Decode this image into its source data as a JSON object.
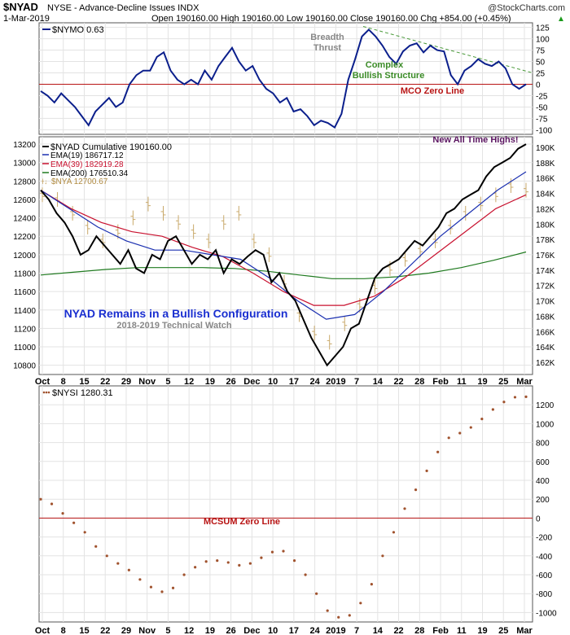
{
  "header": {
    "symbol": "$NYAD",
    "description": "NYSE - Advance-Decline Issues  INDX",
    "watermark": "@StockCharts.com",
    "date": "1-Mar-2019",
    "quote": "Open 190160.00  High 190160.00  Low 190160.00  Close 190160.00  Chg +854.00 (+0.45%)",
    "quote_arrow": "▲"
  },
  "annotations": {
    "breadth_line1": "Breadth",
    "breadth_line2": "Thrust",
    "complex_line1": "Complex",
    "complex_line2": "Bullish Structure",
    "mco_zero": "MCO Zero Line",
    "new_highs": "New All Time Highs!",
    "config": "NYAD Remains in a Bullish Configuration",
    "watch": "2018-2019 Technical Watch",
    "mcsum_zero": "MCSUM Zero Line"
  },
  "colors": {
    "mco": "#0b1f8c",
    "zero": "#b81414",
    "cum": "#000000",
    "ema19": "#1a2fb0",
    "ema39": "#c8102e",
    "ema200": "#1f7a1f",
    "nya": "#c9a96a",
    "mcsum": "#a0522d",
    "trend": "#4a9a3a",
    "grid": "#e3e3e3",
    "breadth": "#888888",
    "complex": "#3c8c28",
    "new_highs": "#5a1460",
    "config": "#1a2fd0"
  },
  "x_ticks": [
    "Oct",
    "8",
    "15",
    "22",
    "29",
    "Nov",
    "5",
    "12",
    "19",
    "26",
    "Dec",
    "10",
    "17",
    "24",
    "2019",
    "7",
    "14",
    "22",
    "28",
    "Feb",
    "11",
    "19",
    "25",
    "Mar"
  ],
  "chart_data": [
    {
      "type": "line",
      "name": "mco",
      "legend": "$NYMO 0.63",
      "ylim": [
        -110,
        135
      ],
      "y_ticks": [
        "125",
        "100",
        "75",
        "50",
        "25",
        "0",
        "-25",
        "-50",
        "-75",
        "-100"
      ],
      "values": [
        -15,
        -25,
        -40,
        -20,
        -35,
        -50,
        -70,
        -90,
        -60,
        -45,
        -30,
        -50,
        -40,
        0,
        20,
        30,
        30,
        60,
        70,
        30,
        10,
        0,
        10,
        0,
        30,
        10,
        40,
        60,
        80,
        50,
        30,
        40,
        10,
        -10,
        -20,
        -40,
        -30,
        -60,
        -55,
        -70,
        -90,
        -80,
        -85,
        -95,
        -65,
        10,
        55,
        105,
        120,
        105,
        85,
        60,
        45,
        72,
        85,
        90,
        70,
        85,
        75,
        72,
        20,
        0,
        30,
        40,
        55,
        45,
        40,
        50,
        35,
        0,
        -10,
        0
      ],
      "trendline_ylim": [
        127,
        25
      ],
      "zero_line": 0
    },
    {
      "type": "line",
      "name": "cumulative",
      "ylim": [
        10700,
        13280
      ],
      "y_ticks_left": [
        "13200",
        "13000",
        "12800",
        "12600",
        "12400",
        "12200",
        "12000",
        "11800",
        "11600",
        "11400",
        "11200",
        "11000",
        "10800"
      ],
      "y_ticks_right": [
        "190K",
        "188K",
        "186K",
        "184K",
        "182K",
        "180K",
        "178K",
        "176K",
        "174K",
        "172K",
        "170K",
        "168K",
        "166K",
        "164K",
        "162K"
      ],
      "series": [
        {
          "name": "$NYAD Cumulative 190160.00",
          "role": "cum",
          "values": [
            12700,
            12600,
            12450,
            12350,
            12200,
            12000,
            12050,
            12200,
            12100,
            12000,
            11900,
            12050,
            11850,
            11800,
            12000,
            11950,
            12150,
            12200,
            12050,
            11900,
            12000,
            11950,
            12050,
            11800,
            11950,
            11900,
            11980,
            12050,
            12000,
            11700,
            11800,
            11600,
            11500,
            11300,
            11100,
            10950,
            10800,
            10900,
            11000,
            11200,
            11250,
            11500,
            11750,
            11850,
            11900,
            11950,
            12050,
            12150,
            12100,
            12200,
            12300,
            12450,
            12500,
            12600,
            12650,
            12700,
            12850,
            12950,
            13000,
            13050,
            13150,
            13200
          ]
        },
        {
          "name": "EMA(19) 186717.12",
          "role": "ema19",
          "values": [
            12700,
            12500,
            12300,
            12150,
            12050,
            12050,
            12000,
            11950,
            11750,
            11500,
            11300,
            11350,
            11600,
            11900,
            12200,
            12450,
            12700,
            12900
          ]
        },
        {
          "name": "EMA(39) 182919.28",
          "role": "ema39",
          "values": [
            12700,
            12500,
            12350,
            12250,
            12200,
            12080,
            11980,
            11800,
            11600,
            11450,
            11450,
            11550,
            11750,
            12000,
            12250,
            12500,
            12650
          ]
        },
        {
          "name": "EMA(200) 176510.34",
          "role": "ema200",
          "values": [
            11780,
            11810,
            11840,
            11860,
            11860,
            11860,
            11850,
            11820,
            11780,
            11740,
            11740,
            11760,
            11800,
            11860,
            11940,
            12030
          ]
        },
        {
          "name": "$NYA 12700.67",
          "role": "nya",
          "values": [
            12650,
            12600,
            12450,
            12300,
            12150,
            12250,
            12400,
            12550,
            12450,
            12350,
            12250,
            12150,
            12350,
            12450,
            12150,
            12000,
            11700,
            11350,
            11150,
            11050,
            11250,
            11450,
            11650,
            11850,
            11950,
            12050,
            12150,
            12300,
            12450,
            12550,
            12650,
            12750,
            12700
          ]
        }
      ]
    },
    {
      "type": "scatter",
      "name": "mcsum",
      "legend": "$NYSI 1280.31",
      "ylim": [
        -1100,
        1400
      ],
      "y_ticks": [
        "1200",
        "1000",
        "800",
        "600",
        "400",
        "200",
        "0",
        "-200",
        "-400",
        "-600",
        "-800",
        "-1000"
      ],
      "values": [
        200,
        150,
        50,
        -50,
        -150,
        -300,
        -400,
        -480,
        -550,
        -650,
        -730,
        -780,
        -740,
        -600,
        -520,
        -460,
        -450,
        -470,
        -500,
        -480,
        -420,
        -360,
        -350,
        -450,
        -600,
        -800,
        -980,
        -1050,
        -1030,
        -900,
        -700,
        -400,
        -150,
        100,
        300,
        500,
        700,
        850,
        900,
        960,
        1050,
        1150,
        1230,
        1280,
        1285
      ]
    }
  ]
}
